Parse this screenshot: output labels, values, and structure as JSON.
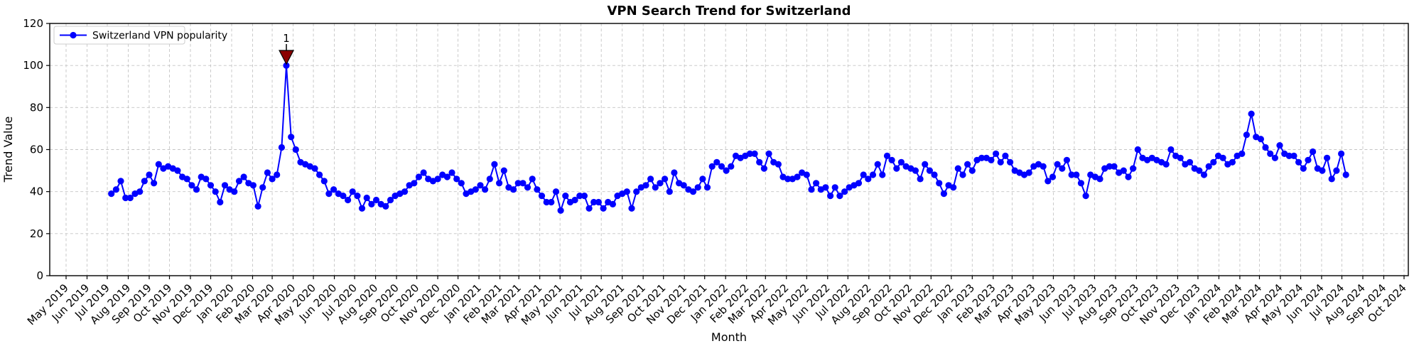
{
  "figure": {
    "background": "#ffffff"
  },
  "chart_data": {
    "type": "line",
    "title": "VPN Search Trend for Switzerland",
    "xlabel": "Month",
    "ylabel": "Trend Value",
    "grid": true,
    "grid_style": "dashed",
    "grid_color": "#c4c4c4",
    "legend_position": "upper-left",
    "ylim": [
      0,
      120
    ],
    "y_ticks": [
      0,
      20,
      40,
      60,
      80,
      100,
      120
    ],
    "x_ticks": [
      "May 2019",
      "Jun 2019",
      "Jul 2019",
      "Aug 2019",
      "Sep 2019",
      "Oct 2019",
      "Nov 2019",
      "Dec 2019",
      "Jan 2020",
      "Feb 2020",
      "Mar 2020",
      "Apr 2020",
      "May 2020",
      "Jun 2020",
      "Jul 2020",
      "Aug 2020",
      "Sep 2020",
      "Oct 2020",
      "Nov 2020",
      "Dec 2020",
      "Jan 2021",
      "Feb 2021",
      "Mar 2021",
      "Apr 2021",
      "May 2021",
      "Jun 2021",
      "Jul 2021",
      "Aug 2021",
      "Sep 2021",
      "Oct 2021",
      "Nov 2021",
      "Dec 2021",
      "Jan 2022",
      "Feb 2022",
      "Mar 2022",
      "Apr 2022",
      "May 2022",
      "Jun 2022",
      "Jul 2022",
      "Aug 2022",
      "Sep 2022",
      "Oct 2022",
      "Nov 2022",
      "Dec 2022",
      "Jan 2023",
      "Feb 2023",
      "Mar 2023",
      "Apr 2023",
      "May 2023",
      "Jun 2023",
      "Jul 2023",
      "Aug 2023",
      "Sep 2023",
      "Oct 2023",
      "Nov 2023",
      "Dec 2023",
      "Jan 2024",
      "Feb 2024",
      "Mar 2024",
      "Apr 2024",
      "May 2024",
      "Jun 2024",
      "Jul 2024",
      "Aug 2024",
      "Sep 2024",
      "Oct 2024"
    ],
    "series": [
      {
        "name": "Switzerland VPN popularity",
        "color": "#0000ff",
        "marker": "circle",
        "start_date": "2019-07-07",
        "frequency": "weekly",
        "values": [
          39,
          41,
          45,
          37,
          37,
          39,
          40,
          45,
          48,
          44,
          53,
          51,
          52,
          51,
          50,
          47,
          46,
          43,
          41,
          47,
          46,
          43,
          40,
          35,
          43,
          41,
          40,
          45,
          47,
          44,
          43,
          33,
          42,
          49,
          46,
          48,
          61,
          100,
          66,
          60,
          54,
          53,
          52,
          51,
          48,
          45,
          39,
          41,
          39,
          38,
          36,
          40,
          38,
          32,
          37,
          34,
          36,
          34,
          33,
          36,
          38,
          39,
          40,
          43,
          44,
          47,
          49,
          46,
          45,
          46,
          48,
          47,
          49,
          46,
          44,
          39,
          40,
          41,
          43,
          41,
          46,
          53,
          44,
          50,
          42,
          41,
          44,
          44,
          42,
          46,
          41,
          38,
          35,
          35,
          40,
          31,
          38,
          35,
          36,
          38,
          38,
          32,
          35,
          35,
          32,
          35,
          34,
          38,
          39,
          40,
          32,
          40,
          42,
          43,
          46,
          42,
          44,
          46,
          40,
          49,
          44,
          43,
          41,
          40,
          42,
          46,
          42,
          52,
          54,
          52,
          50,
          52,
          57,
          56,
          57,
          58,
          58,
          54,
          51,
          58,
          54,
          53,
          47,
          46,
          46,
          47,
          49,
          48,
          41,
          44,
          41,
          42,
          38,
          42,
          38,
          40,
          42,
          43,
          44,
          48,
          46,
          48,
          53,
          48,
          57,
          55,
          51,
          54,
          52,
          51,
          50,
          46,
          53,
          50,
          48,
          44,
          39,
          43,
          42,
          51,
          48,
          53,
          50,
          55,
          56,
          56,
          55,
          58,
          54,
          57,
          54,
          50,
          49,
          48,
          49,
          52,
          53,
          52,
          45,
          47,
          53,
          51,
          55,
          48,
          48,
          44,
          38,
          48,
          47,
          46,
          51,
          52,
          52,
          49,
          50,
          47,
          51,
          60,
          56,
          55,
          56,
          55,
          54,
          53,
          60,
          57,
          56,
          53,
          54,
          51,
          50,
          48,
          52,
          54,
          57,
          56,
          53,
          54,
          57,
          58,
          67,
          77,
          66,
          65,
          61,
          58,
          56,
          62,
          58,
          57,
          57,
          54,
          51,
          55,
          59,
          51,
          50,
          56,
          46,
          50,
          58,
          48
        ]
      }
    ],
    "annotation": {
      "label": "1",
      "point_index": 37,
      "value": 100,
      "color": "#8b0000"
    }
  },
  "legend": {
    "label": "Switzerland VPN popularity"
  }
}
